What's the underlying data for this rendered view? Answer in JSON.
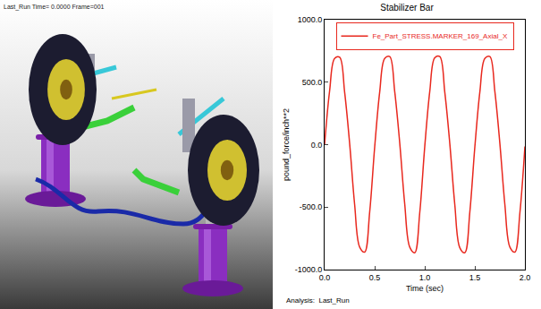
{
  "render_panel": {
    "header": "Last_Run   Time= 0.0000   Frame=001"
  },
  "chart_data": {
    "type": "line",
    "title": "Stabilizer Bar",
    "x_label": "Time (sec)",
    "y_label": "pound_force/inch**2",
    "annotation": "Analysis:  Last_Run",
    "x": [
      0.0,
      0.05,
      0.1,
      0.15,
      0.2,
      0.25,
      0.3,
      0.35,
      0.4,
      0.45,
      0.5,
      0.55,
      0.6,
      0.65,
      0.7,
      0.75,
      0.8,
      0.85,
      0.9,
      0.95,
      1.0,
      1.05,
      1.1,
      1.15,
      1.2,
      1.25,
      1.3,
      1.35,
      1.4,
      1.45,
      1.5,
      1.55,
      1.6,
      1.65,
      1.7,
      1.75,
      1.8,
      1.85,
      1.9,
      1.95,
      2.0
    ],
    "series": [
      {
        "name": "Fe_Part_STRESS.MARKER_169_Axial_X",
        "color": "#e8281e",
        "values": [
          0,
          430,
          690,
          700,
          420,
          10,
          -480,
          -820,
          -860,
          -540,
          -20,
          420,
          690,
          705,
          425,
          15,
          -475,
          -820,
          -865,
          -545,
          -15,
          425,
          695,
          705,
          420,
          10,
          -480,
          -825,
          -865,
          -540,
          -20,
          420,
          690,
          705,
          425,
          10,
          -480,
          -820,
          -860,
          -545,
          -15
        ]
      }
    ],
    "xlim": [
      0.0,
      2.0
    ],
    "xticks": [
      {
        "value": 0,
        "label": "0.0"
      },
      {
        "value": 0.5,
        "label": "0.5"
      },
      {
        "value": 1,
        "label": "1.0"
      },
      {
        "value": 1.5,
        "label": "1.5"
      },
      {
        "value": 2,
        "label": "2.0"
      }
    ],
    "ylim": [
      -1000,
      1000
    ],
    "yticks": [
      {
        "value": -1000,
        "label": "-1000.0"
      },
      {
        "value": -500,
        "label": "-500.0"
      },
      {
        "value": 0,
        "label": "0.0"
      },
      {
        "value": 500,
        "label": "500.0"
      },
      {
        "value": 1000,
        "label": "1000.0"
      }
    ],
    "grid": false,
    "legend": "top"
  }
}
